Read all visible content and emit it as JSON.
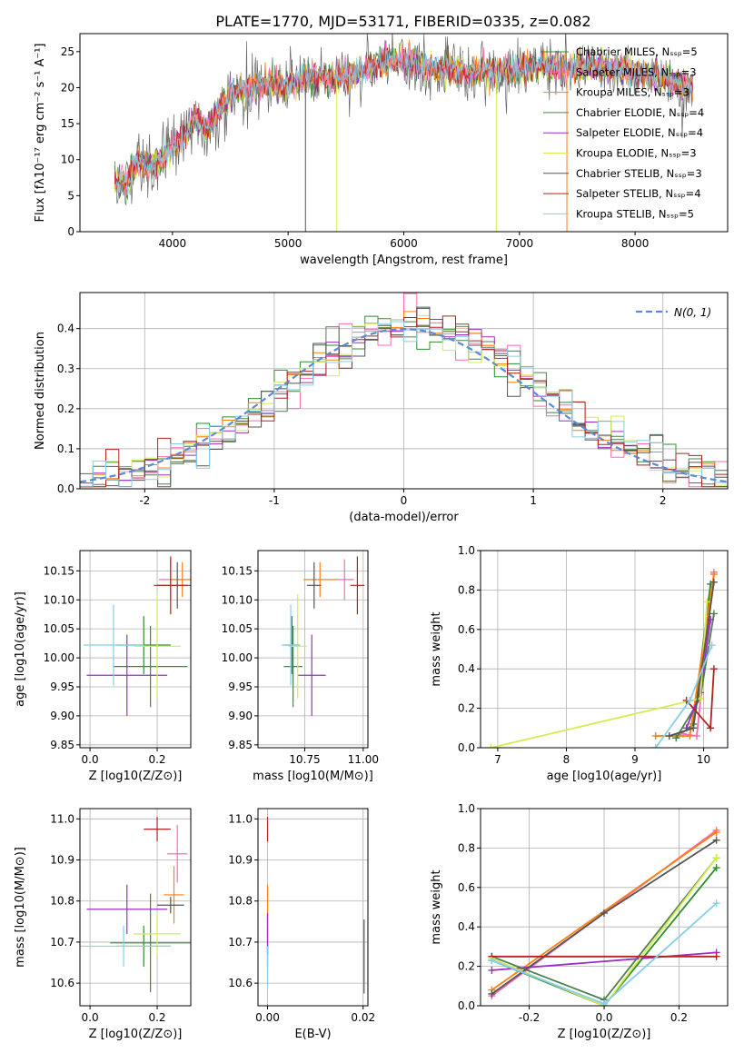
{
  "figure_title": "PLATE=1770, MJD=53171, FIBERID=0335, z=0.082",
  "models": [
    {
      "label": "Chabrier MILES, Nₛₛₚ=5",
      "color": "#2e8b2e"
    },
    {
      "label": "Salpeter MILES, Nₛₛₚ=3",
      "color": "#ff69b4"
    },
    {
      "label": "Kroupa MILES, Nₛₛₚ=3",
      "color": "#ff7f0e"
    },
    {
      "label": "Chabrier ELODIE, Nₛₛₚ=4",
      "color": "#4f7f4f"
    },
    {
      "label": "Salpeter ELODIE, Nₛₛₚ=4",
      "color": "#9b30c0"
    },
    {
      "label": "Kroupa ELODIE, Nₛₛₚ=3",
      "color": "#d4ec50"
    },
    {
      "label": "Chabrier STELIB, Nₛₛₚ=3",
      "color": "#555555"
    },
    {
      "label": "Salpeter STELIB, Nₛₛₚ=4",
      "color": "#b22222"
    },
    {
      "label": "Kroupa STELIB, Nₛₛₚ=5",
      "color": "#87ceeb"
    }
  ],
  "chart_data": [
    {
      "type": "line",
      "title": "PLATE=1770, MJD=53171, FIBERID=0335, z=0.082",
      "xlabel": "wavelength [Angstrom, rest frame]",
      "ylabel": "Flux [fλ10⁻¹⁷ erg cm⁻² s⁻¹ A⁻¹]",
      "xlim": [
        3200,
        8800
      ],
      "ylim": [
        0,
        27.5
      ],
      "xticks": [
        4000,
        5000,
        6000,
        7000,
        8000
      ],
      "yticks": [
        0,
        5,
        10,
        15,
        20,
        25
      ],
      "spectrum_trend": {
        "x": [
          3500,
          3600,
          3700,
          3800,
          3900,
          4000,
          4100,
          4200,
          4300,
          4400,
          4500,
          4600,
          4700,
          4800,
          4900,
          5000,
          5200,
          5400,
          5600,
          5800,
          6000,
          6200,
          6400,
          6600,
          6800,
          7000,
          7200,
          7400,
          7600,
          7800,
          8000,
          8200,
          8400,
          8500
        ],
        "y": [
          7,
          6.5,
          10,
          9,
          9.5,
          12,
          13,
          16,
          14,
          17,
          19,
          19.5,
          20,
          20.5,
          20.2,
          20.5,
          21.5,
          21.2,
          22,
          23.5,
          23.8,
          22.8,
          22.5,
          22,
          22.3,
          22.5,
          23,
          22.6,
          23,
          22.8,
          22.2,
          21.5,
          20.5,
          20.2
        ]
      },
      "legend": "upper right"
    },
    {
      "type": "bar",
      "xlabel": "(data-model)/error",
      "ylabel": "Normed distribution",
      "xlim": [
        -2.5,
        2.5
      ],
      "ylim": [
        0,
        0.49
      ],
      "xticks": [
        -2,
        -1,
        0,
        1,
        2
      ],
      "yticks": [
        0.0,
        0.1,
        0.2,
        0.3,
        0.4
      ],
      "bin_edges_start": -2.5,
      "bin_width": 0.1,
      "reference_curve": {
        "name": "N(0, 1)",
        "mean": 0,
        "sigma": 1
      },
      "legend": "upper right"
    },
    {
      "type": "scatter",
      "xlabel": "Z [log10(Z/Z⊙)]",
      "ylabel": "age [log10(age/yr)]",
      "xlim": [
        -0.03,
        0.3
      ],
      "ylim": [
        9.845,
        10.185
      ],
      "xticks": [
        0.0,
        0.2
      ],
      "yticks": [
        9.85,
        9.9,
        9.95,
        10.0,
        10.05,
        10.1,
        10.15
      ],
      "points": [
        {
          "x": 0.16,
          "y": 10.022,
          "xerr": 0.08,
          "yerr": 0.05,
          "model": 0
        },
        {
          "x": 0.24,
          "y": 10.135,
          "xerr": 0.035,
          "yerr": 0.035,
          "model": 1
        },
        {
          "x": 0.275,
          "y": 10.135,
          "xerr": 0.035,
          "yerr": 0.03,
          "model": 2
        },
        {
          "x": 0.18,
          "y": 9.985,
          "xerr": 0.11,
          "yerr": 0.07,
          "model": 3
        },
        {
          "x": 0.11,
          "y": 9.97,
          "xerr": 0.12,
          "yerr": 0.07,
          "model": 4
        },
        {
          "x": 0.2,
          "y": 10.02,
          "xerr": 0.07,
          "yerr": 0.09,
          "model": 5
        },
        {
          "x": 0.26,
          "y": 10.125,
          "xerr": 0.06,
          "yerr": 0.04,
          "model": 6
        },
        {
          "x": 0.24,
          "y": 10.125,
          "xerr": 0.05,
          "yerr": 0.05,
          "model": 7
        },
        {
          "x": 0.07,
          "y": 10.022,
          "xerr": 0.09,
          "yerr": 0.07,
          "model": 8
        }
      ]
    },
    {
      "type": "scatter",
      "xlabel": "mass [log10(M/M⊙)]",
      "xlim": [
        10.55,
        11.02
      ],
      "ylim": [
        9.845,
        10.185
      ],
      "xticks": [
        10.75,
        11.0
      ],
      "yticks": [
        9.85,
        9.9,
        9.95,
        10.0,
        10.05,
        10.1,
        10.15
      ],
      "points": [
        {
          "x": 10.695,
          "y": 10.022,
          "xerr": 0.035,
          "yerr": 0.05,
          "model": 0
        },
        {
          "x": 10.92,
          "y": 10.135,
          "xerr": 0.04,
          "yerr": 0.035,
          "model": 1
        },
        {
          "x": 10.815,
          "y": 10.135,
          "xerr": 0.07,
          "yerr": 0.03,
          "model": 2
        },
        {
          "x": 10.7,
          "y": 9.985,
          "xerr": 0.04,
          "yerr": 0.07,
          "model": 3
        },
        {
          "x": 10.78,
          "y": 9.97,
          "xerr": 0.06,
          "yerr": 0.07,
          "model": 4
        },
        {
          "x": 10.72,
          "y": 10.02,
          "xerr": 0.04,
          "yerr": 0.09,
          "model": 5
        },
        {
          "x": 10.79,
          "y": 10.125,
          "xerr": 0.03,
          "yerr": 0.04,
          "model": 6
        },
        {
          "x": 10.975,
          "y": 10.125,
          "xerr": 0.03,
          "yerr": 0.05,
          "model": 7
        },
        {
          "x": 10.69,
          "y": 10.022,
          "xerr": 0.04,
          "yerr": 0.07,
          "model": 8
        }
      ]
    },
    {
      "type": "line",
      "xlabel": "age [log10(age/yr)]",
      "ylabel": "mass weight",
      "xlim": [
        6.75,
        10.35
      ],
      "ylim": [
        0,
        1.0
      ],
      "xticks": [
        7,
        8,
        9,
        10
      ],
      "yticks": [
        0.0,
        0.2,
        0.4,
        0.6,
        0.8,
        1.0
      ],
      "series": [
        {
          "model": 0,
          "x": [
            9.6,
            9.85,
            10.1
          ],
          "y": [
            0.05,
            0.12,
            0.83
          ]
        },
        {
          "model": 1,
          "x": [
            9.7,
            9.9,
            10.15
          ],
          "y": [
            0.07,
            0.06,
            0.89
          ]
        },
        {
          "model": 2,
          "x": [
            9.3,
            9.8,
            10.15
          ],
          "y": [
            0.06,
            0.06,
            0.88
          ]
        },
        {
          "model": 3,
          "x": [
            9.6,
            9.95,
            10.15
          ],
          "y": [
            0.05,
            0.25,
            0.68
          ]
        },
        {
          "model": 4,
          "x": [
            9.75,
            9.95,
            10.1
          ],
          "y": [
            0.1,
            0.28,
            0.65
          ]
        },
        {
          "model": 5,
          "x": [
            6.9,
            9.95,
            10.05
          ],
          "y": [
            0.0,
            0.25,
            0.74
          ]
        },
        {
          "model": 6,
          "x": [
            9.5,
            9.85,
            10.15
          ],
          "y": [
            0.06,
            0.1,
            0.84
          ]
        },
        {
          "model": 7,
          "x": [
            9.75,
            10.1,
            10.15
          ],
          "y": [
            0.24,
            0.1,
            0.4
          ]
        },
        {
          "model": 8,
          "x": [
            9.3,
            9.8,
            10.12
          ],
          "y": [
            0.0,
            0.24,
            0.52
          ]
        }
      ]
    },
    {
      "type": "scatter",
      "xlabel": "Z [log10(Z/Z⊙)]",
      "ylabel": "mass [log10(M/M⊙)]",
      "xlim": [
        -0.03,
        0.3
      ],
      "ylim": [
        10.545,
        11.025
      ],
      "xticks": [
        0.0,
        0.2
      ],
      "yticks": [
        10.6,
        10.7,
        10.8,
        10.9,
        11.0
      ],
      "points": [
        {
          "x": 0.16,
          "y": 10.69,
          "xerr": 0.08,
          "yerr": 0.05,
          "model": 0
        },
        {
          "x": 0.26,
          "y": 10.915,
          "xerr": 0.03,
          "yerr": 0.07,
          "model": 1
        },
        {
          "x": 0.25,
          "y": 10.815,
          "xerr": 0.03,
          "yerr": 0.07,
          "model": 2
        },
        {
          "x": 0.18,
          "y": 10.698,
          "xerr": 0.12,
          "yerr": 0.12,
          "model": 3
        },
        {
          "x": 0.11,
          "y": 10.78,
          "xerr": 0.12,
          "yerr": 0.06,
          "model": 4
        },
        {
          "x": 0.2,
          "y": 10.72,
          "xerr": 0.07,
          "yerr": 0.05,
          "model": 5
        },
        {
          "x": 0.24,
          "y": 10.79,
          "xerr": 0.04,
          "yerr": 0.02,
          "model": 6
        },
        {
          "x": 0.2,
          "y": 10.975,
          "xerr": 0.04,
          "yerr": 0.03,
          "model": 7
        },
        {
          "x": 0.1,
          "y": 10.69,
          "xerr": 0.14,
          "yerr": 0.05,
          "model": 8
        }
      ]
    },
    {
      "type": "scatter",
      "xlabel": "E(B-V)",
      "xlim": [
        -0.002,
        0.021
      ],
      "ylim": [
        10.545,
        11.025
      ],
      "xticks": [
        0.0,
        0.02
      ],
      "yticks": [
        10.6,
        10.7,
        10.8,
        10.9,
        11.0
      ],
      "points": [
        {
          "x": 0.0,
          "y": 10.69,
          "yerr": 0.05,
          "model": 0
        },
        {
          "x": 0.0,
          "y": 10.79,
          "yerr": 0.05,
          "model": 2
        },
        {
          "x": 0.0,
          "y": 10.72,
          "yerr": 0.05,
          "model": 3
        },
        {
          "x": 0.0,
          "y": 10.72,
          "yerr": 0.05,
          "model": 4
        },
        {
          "x": 0.0,
          "y": 10.975,
          "yerr": 0.03,
          "model": 7
        },
        {
          "x": 0.0,
          "y": 10.64,
          "yerr": 0.05,
          "model": 8
        },
        {
          "x": 0.0202,
          "y": 10.665,
          "yerr": 0.09,
          "model": 6
        }
      ]
    },
    {
      "type": "line",
      "xlabel": "Z [log10(Z/Z⊙)]",
      "ylabel": "mass weight",
      "xlim": [
        -0.33,
        0.33
      ],
      "ylim": [
        0,
        1.0
      ],
      "xticks": [
        -0.2,
        0.0,
        0.2
      ],
      "yticks": [
        0.0,
        0.2,
        0.4,
        0.6,
        0.8,
        1.0
      ],
      "series": [
        {
          "model": 0,
          "x": [
            -0.3,
            0.0,
            0.3
          ],
          "y": [
            0.23,
            0.0,
            0.7
          ]
        },
        {
          "model": 1,
          "x": [
            -0.3,
            0.3
          ],
          "y": [
            0.05,
            0.89
          ]
        },
        {
          "model": 2,
          "x": [
            -0.3,
            0.3
          ],
          "y": [
            0.08,
            0.88
          ]
        },
        {
          "model": 3,
          "x": [
            -0.3,
            0.0,
            0.3
          ],
          "y": [
            0.25,
            0.03,
            0.75
          ]
        },
        {
          "model": 4,
          "x": [
            -0.3,
            0.3
          ],
          "y": [
            0.18,
            0.27
          ]
        },
        {
          "model": 5,
          "x": [
            -0.3,
            0.0,
            0.3
          ],
          "y": [
            0.24,
            0.0,
            0.75
          ]
        },
        {
          "model": 6,
          "x": [
            -0.3,
            0.0,
            0.3
          ],
          "y": [
            0.06,
            0.47,
            0.84
          ]
        },
        {
          "model": 7,
          "x": [
            -0.3,
            0.3
          ],
          "y": [
            0.25,
            0.25
          ]
        },
        {
          "model": 8,
          "x": [
            -0.3,
            0.0,
            0.3
          ],
          "y": [
            0.23,
            0.01,
            0.52
          ]
        }
      ]
    }
  ]
}
